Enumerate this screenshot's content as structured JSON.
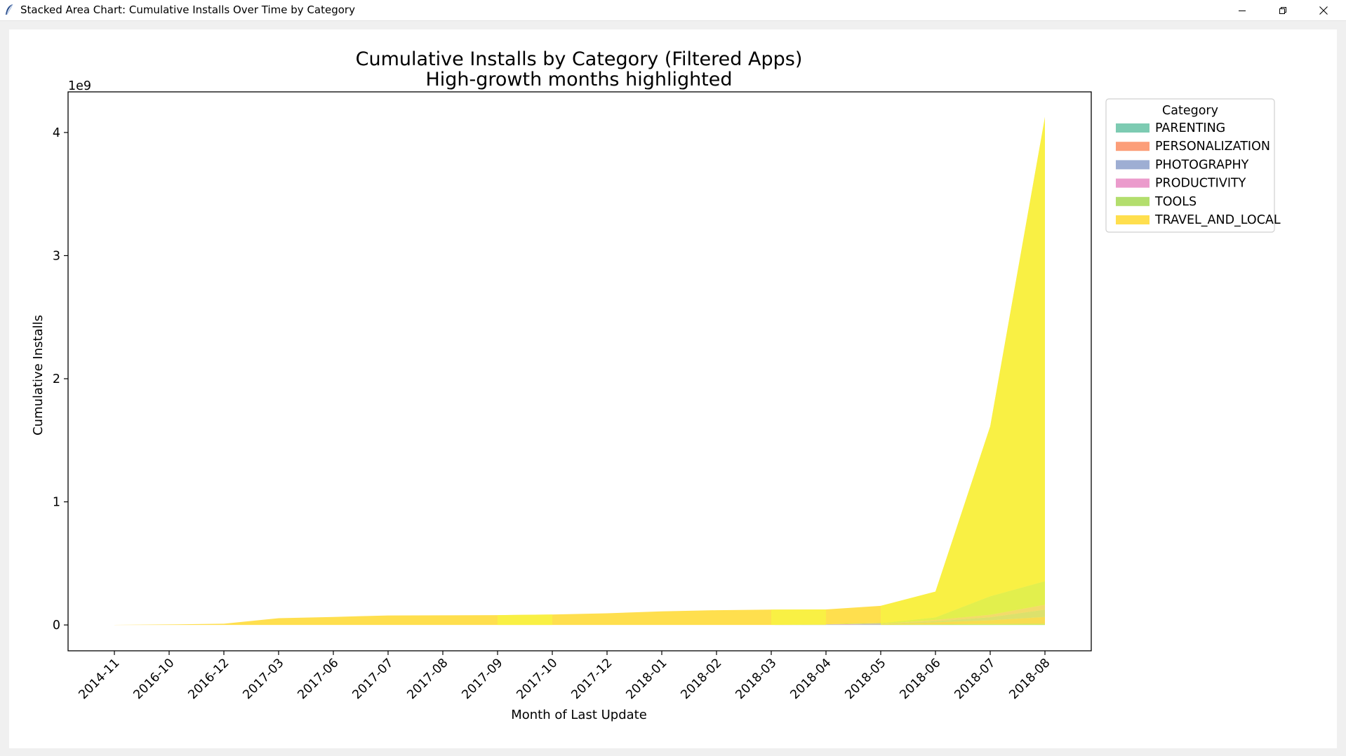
{
  "window": {
    "title": "Stacked Area Chart: Cumulative Installs Over Time by Category",
    "icon": "feather-icon",
    "controls": [
      "minimize-icon",
      "restore-icon",
      "close-icon"
    ]
  },
  "chart_data": {
    "type": "area",
    "stacked": true,
    "title": "Cumulative Installs by Category (Filtered Apps)",
    "subtitle": "High-growth months highlighted",
    "xlabel": "Month of Last Update",
    "ylabel": "Cumulative Installs",
    "y_offset_text": "1e9",
    "ylim": [
      -0.21,
      4.33
    ],
    "yticks": [
      0,
      1,
      2,
      3,
      4
    ],
    "grid": false,
    "legend": {
      "title": "Category",
      "placement": "upper-right-outside"
    },
    "categories": [
      "2014-11",
      "2016-10",
      "2016-12",
      "2017-03",
      "2017-06",
      "2017-07",
      "2017-08",
      "2017-09",
      "2017-10",
      "2017-12",
      "2018-01",
      "2018-02",
      "2018-03",
      "2018-04",
      "2018-05",
      "2018-06",
      "2018-07",
      "2018-08"
    ],
    "series": [
      {
        "name": "PARENTING",
        "color": "#66c2a5",
        "values": [
          0,
          0,
          0,
          0,
          0,
          0,
          0,
          0,
          0,
          0,
          0,
          0,
          0,
          0.001,
          0.003,
          0.006,
          0.008,
          0.01
        ]
      },
      {
        "name": "PERSONALIZATION",
        "color": "#fc8d62",
        "values": [
          0,
          0,
          0,
          0,
          0,
          0,
          0,
          0,
          0,
          0,
          0,
          0,
          0,
          0.001,
          0.003,
          0.015,
          0.03,
          0.055
        ]
      },
      {
        "name": "PHOTOGRAPHY",
        "color": "#8da0cb",
        "values": [
          0,
          0,
          0,
          0,
          0,
          0,
          0,
          0,
          0,
          0,
          0,
          0,
          0,
          0.001,
          0.002,
          0.01,
          0.025,
          0.06
        ]
      },
      {
        "name": "PRODUCTIVITY",
        "color": "#e78ac3",
        "values": [
          0,
          0,
          0,
          0,
          0,
          0,
          0,
          0,
          0,
          0,
          0,
          0,
          0,
          0.001,
          0.002,
          0.01,
          0.02,
          0.04
        ]
      },
      {
        "name": "TOOLS",
        "color": "#a6d854",
        "values": [
          0,
          0,
          0,
          0,
          0,
          0,
          0,
          0,
          0,
          0,
          0,
          0,
          0,
          0.002,
          0.005,
          0.02,
          0.15,
          0.19
        ]
      },
      {
        "name": "TRAVEL_AND_LOCAL",
        "color": "#ffd92f",
        "values": [
          0.001,
          0.004,
          0.01,
          0.055,
          0.065,
          0.077,
          0.078,
          0.08,
          0.085,
          0.095,
          0.11,
          0.12,
          0.125,
          0.12,
          0.14,
          0.21,
          1.38,
          3.77
        ]
      }
    ],
    "highlighted_months": [
      "2017-10",
      "2018-04",
      "2018-06",
      "2018-07",
      "2018-08"
    ],
    "highlight_color": "#f7f740"
  }
}
